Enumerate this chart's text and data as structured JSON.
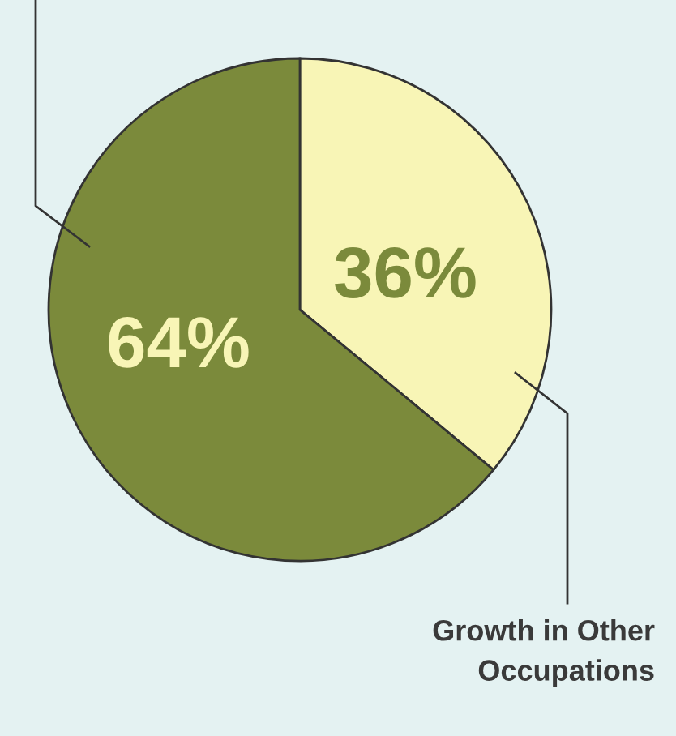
{
  "chart_data": {
    "type": "pie",
    "categories": [
      "Growth in Other Occupations",
      null
    ],
    "values": [
      36,
      64
    ],
    "colors": [
      "#f8f5b6",
      "#7b8a3b"
    ],
    "value_labels": [
      "36%",
      "64%"
    ]
  }
}
